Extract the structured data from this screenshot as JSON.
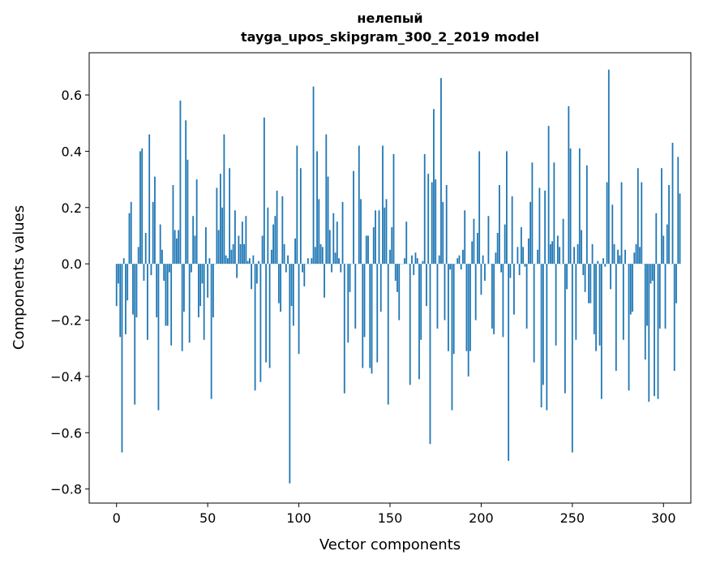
{
  "chart_data": {
    "type": "bar",
    "title_line1": "нелепый",
    "title_line2": "tayga_upos_skipgram_300_2_2019 model",
    "xlabel": "Vector components",
    "ylabel": "Components values",
    "xlim": [
      -15,
      315
    ],
    "ylim": [
      -0.85,
      0.75
    ],
    "xticks": [
      0,
      50,
      100,
      150,
      200,
      250,
      300
    ],
    "xtick_labels": [
      "0",
      "50",
      "100",
      "150",
      "200",
      "250",
      "300"
    ],
    "yticks": [
      -0.8,
      -0.6,
      -0.4,
      -0.2,
      0.0,
      0.2,
      0.4,
      0.6
    ],
    "ytick_labels": [
      "−0.8",
      "−0.6",
      "−0.4",
      "−0.2",
      "0.0",
      "0.2",
      "0.4",
      "0.6"
    ],
    "grid": false,
    "color": "#1f77b4",
    "values": [
      -0.15,
      -0.07,
      -0.26,
      -0.67,
      0.02,
      -0.25,
      -0.13,
      0.18,
      0.22,
      -0.18,
      -0.5,
      -0.19,
      0.06,
      0.4,
      0.41,
      -0.06,
      0.11,
      -0.27,
      0.46,
      -0.04,
      0.22,
      0.31,
      -0.19,
      -0.52,
      0.14,
      0.05,
      -0.06,
      -0.22,
      -0.22,
      -0.03,
      -0.29,
      0.28,
      0.12,
      0.09,
      0.12,
      0.58,
      -0.31,
      -0.17,
      0.51,
      0.37,
      -0.28,
      -0.03,
      0.17,
      0.1,
      0.3,
      -0.19,
      -0.15,
      -0.07,
      -0.27,
      0.13,
      -0.12,
      0.02,
      -0.48,
      -0.19,
      0.0,
      0.27,
      0.12,
      0.32,
      0.2,
      0.46,
      0.03,
      0.02,
      0.34,
      0.05,
      0.07,
      0.19,
      -0.05,
      0.1,
      0.07,
      0.15,
      0.07,
      0.17,
      0.01,
      0.02,
      -0.09,
      0.03,
      -0.45,
      -0.07,
      0.01,
      -0.42,
      0.1,
      0.52,
      -0.35,
      0.2,
      -0.37,
      0.05,
      0.14,
      0.17,
      0.26,
      -0.14,
      -0.17,
      0.24,
      0.07,
      -0.03,
      0.03,
      -0.78,
      -0.15,
      -0.22,
      0.09,
      0.42,
      -0.32,
      0.34,
      -0.03,
      -0.08,
      0.0,
      0.02,
      0.0,
      0.02,
      0.63,
      0.06,
      0.4,
      0.23,
      0.07,
      0.06,
      -0.12,
      0.46,
      0.31,
      0.12,
      -0.03,
      0.18,
      0.04,
      0.15,
      0.02,
      -0.03,
      0.22,
      -0.46,
      0.0,
      -0.28,
      -0.1,
      0.0,
      0.33,
      -0.23,
      0.0,
      0.42,
      0.23,
      -0.37,
      -0.26,
      0.1,
      0.1,
      -0.37,
      -0.39,
      0.13,
      0.19,
      -0.35,
      0.19,
      -0.17,
      0.42,
      0.2,
      0.23,
      -0.5,
      0.05,
      0.13,
      0.39,
      -0.06,
      -0.1,
      -0.2,
      0.0,
      0.0,
      0.02,
      0.15,
      0.0,
      -0.43,
      0.03,
      -0.04,
      0.04,
      0.02,
      -0.41,
      -0.27,
      0.01,
      0.39,
      -0.15,
      0.32,
      -0.64,
      0.29,
      0.55,
      0.3,
      -0.23,
      0.03,
      0.66,
      0.22,
      -0.2,
      0.28,
      -0.31,
      -0.02,
      -0.52,
      -0.32,
      0.0,
      0.02,
      0.03,
      -0.02,
      0.05,
      0.19,
      -0.31,
      -0.4,
      -0.31,
      0.08,
      0.16,
      -0.2,
      0.11,
      0.4,
      -0.11,
      0.03,
      -0.06,
      0.0,
      0.17,
      0.0,
      -0.23,
      -0.25,
      0.04,
      0.11,
      0.28,
      -0.03,
      -0.26,
      0.14,
      0.4,
      -0.7,
      -0.05,
      0.24,
      -0.18,
      0.0,
      0.06,
      -0.04,
      0.13,
      0.06,
      -0.01,
      -0.23,
      0.09,
      0.22,
      0.36,
      -0.35,
      0.0,
      0.05,
      0.27,
      -0.51,
      -0.43,
      0.26,
      -0.52,
      0.49,
      0.07,
      0.08,
      0.36,
      -0.29,
      0.1,
      0.06,
      0.0,
      0.16,
      -0.46,
      -0.09,
      0.56,
      0.41,
      -0.67,
      0.06,
      -0.27,
      0.07,
      0.41,
      0.12,
      -0.04,
      -0.1,
      0.35,
      -0.14,
      -0.14,
      0.07,
      -0.25,
      -0.31,
      0.01,
      -0.29,
      -0.48,
      0.02,
      -0.01,
      0.29,
      0.69,
      -0.09,
      0.21,
      0.07,
      -0.38,
      0.05,
      0.03,
      0.29,
      -0.27,
      0.05,
      0.0,
      -0.45,
      -0.18,
      -0.17,
      0.04,
      0.07,
      0.34,
      0.06,
      0.29,
      0.0,
      -0.34,
      -0.22,
      -0.49,
      -0.07,
      -0.06,
      -0.47,
      0.18,
      -0.48,
      -0.23,
      0.34,
      0.1,
      -0.23,
      0.14,
      0.28,
      0.0,
      0.43,
      -0.38,
      -0.14,
      0.38,
      0.25
    ]
  }
}
